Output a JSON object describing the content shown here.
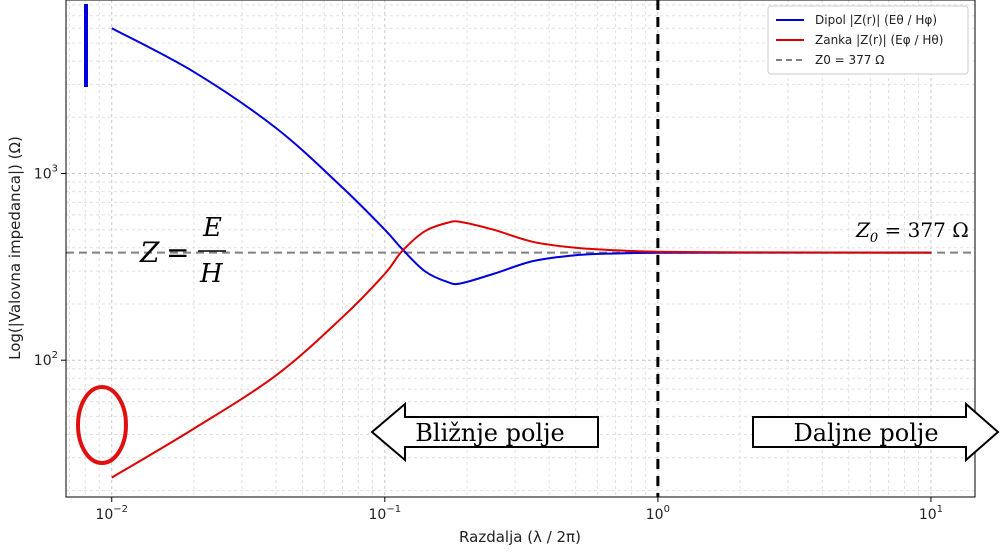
{
  "chart_data": {
    "type": "line",
    "xlabel": "Razdalja (λ / 2π)",
    "ylabel": "Log(|Valovna impedanca|) (Ω)",
    "xscale": "log",
    "yscale": "log",
    "xlim": [
      0.0068,
      14.5
    ],
    "ylim": [
      18.5,
      8500
    ],
    "grid": true,
    "legend_position": "top-right",
    "x_ticks": [
      {
        "value": 0.01,
        "base": "10",
        "exp": "−2"
      },
      {
        "value": 0.1,
        "base": "10",
        "exp": "−1"
      },
      {
        "value": 1,
        "base": "10",
        "exp": "0"
      },
      {
        "value": 10,
        "base": "10",
        "exp": "1"
      }
    ],
    "y_ticks": [
      {
        "value": 100,
        "base": "10",
        "exp": "2"
      },
      {
        "value": 1000,
        "base": "10",
        "exp": "3"
      }
    ],
    "series": [
      {
        "name": "Dipol |Z(r)| (Eθ / Hφ)",
        "color": "#0000dd",
        "style": "solid",
        "points": [
          [
            0.01,
            6000
          ],
          [
            0.02,
            3500
          ],
          [
            0.04,
            1750
          ],
          [
            0.07,
            840
          ],
          [
            0.1,
            500
          ],
          [
            0.115,
            398
          ],
          [
            0.14,
            300
          ],
          [
            0.17,
            262
          ],
          [
            0.19,
            258
          ],
          [
            0.25,
            290
          ],
          [
            0.35,
            340
          ],
          [
            0.5,
            365
          ],
          [
            0.7,
            373
          ],
          [
            1,
            376
          ],
          [
            2,
            377
          ],
          [
            10,
            377
          ]
        ]
      },
      {
        "name": "Zanka |Z(r)| (Eφ / Hθ)",
        "color": "#dd0000",
        "style": "solid",
        "points": [
          [
            0.01,
            23.5
          ],
          [
            0.02,
            43
          ],
          [
            0.04,
            83
          ],
          [
            0.07,
            170
          ],
          [
            0.1,
            290
          ],
          [
            0.115,
            380
          ],
          [
            0.14,
            490
          ],
          [
            0.17,
            545
          ],
          [
            0.19,
            550
          ],
          [
            0.25,
            500
          ],
          [
            0.35,
            430
          ],
          [
            0.5,
            400
          ],
          [
            0.7,
            388
          ],
          [
            1,
            381
          ],
          [
            2,
            378
          ],
          [
            10,
            377
          ]
        ]
      },
      {
        "name": "Z0 = 377 Ω",
        "color": "#808080",
        "style": "dashed",
        "points": [
          [
            0.0068,
            377
          ],
          [
            14.5,
            377
          ]
        ]
      }
    ],
    "reference_lines": [
      {
        "axis": "x",
        "value": 1,
        "color": "#000000",
        "style": "dashed"
      }
    ],
    "annotations": {
      "near_field_label": "Bližnje polje",
      "far_field_label": "Daljne polje",
      "z0_annotation": {
        "var": "Z",
        "sub": "0",
        "rest": " = 377 Ω"
      },
      "equation": {
        "lhs": "Z",
        "eq": "=",
        "numerator": "E",
        "denominator": "H"
      }
    },
    "marker_colors": {
      "dipole": "#0000dd",
      "loop": "#e01010"
    }
  }
}
